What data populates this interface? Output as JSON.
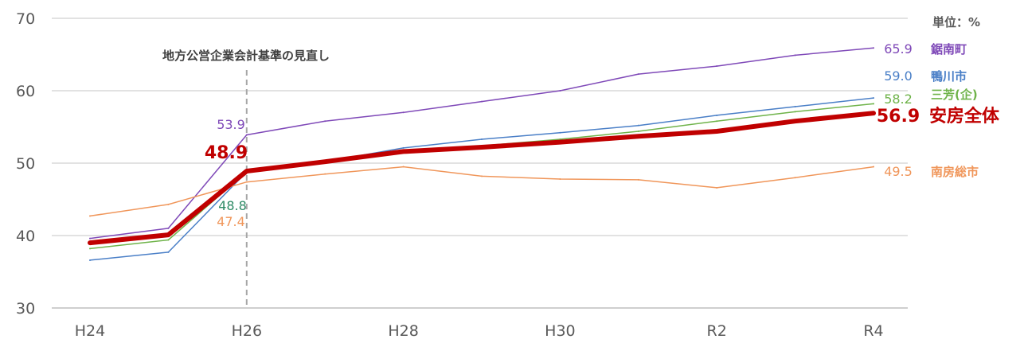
{
  "chart_data": {
    "type": "line",
    "unit_label": "単位：%",
    "annotation": "地方公営企業会計基準の見直し",
    "annotation_x": "H26",
    "x": [
      "H24",
      "H25",
      "H26",
      "H27",
      "H28",
      "H29",
      "H30",
      "H31",
      "R2",
      "R3",
      "R4"
    ],
    "x_tick_labels": [
      "H24",
      "",
      "H26",
      "",
      "H28",
      "",
      "H30",
      "",
      "R2",
      "",
      "R4"
    ],
    "ylim": [
      30,
      70
    ],
    "y_ticks": [
      30,
      40,
      50,
      60,
      70
    ],
    "grid": true,
    "series": [
      {
        "name": "鋸南町",
        "color": "#7F49B8",
        "width": 1.5,
        "values": [
          39.6,
          41.0,
          53.9,
          55.8,
          57.0,
          58.5,
          60.0,
          62.3,
          63.4,
          64.9,
          65.9
        ],
        "end_label": "65.9",
        "h26_label": "53.9"
      },
      {
        "name": "鴨川市",
        "color": "#4A7FC7",
        "width": 1.5,
        "values": [
          36.6,
          37.7,
          48.8,
          50.2,
          52.1,
          53.3,
          54.2,
          55.2,
          56.6,
          57.8,
          59.0
        ],
        "end_label": "59.0",
        "h26_label": "48.8"
      },
      {
        "name": "三芳(企)",
        "color": "#6FB34A",
        "width": 1.5,
        "values": [
          38.2,
          39.4,
          48.8,
          50.0,
          51.6,
          52.4,
          53.3,
          54.4,
          55.8,
          57.1,
          58.2
        ],
        "end_label": "58.2",
        "h26_label": "48.8"
      },
      {
        "name": "南房総市",
        "color": "#F0965A",
        "width": 1.5,
        "values": [
          42.7,
          44.3,
          47.4,
          48.5,
          49.5,
          48.2,
          47.8,
          47.7,
          46.6,
          48.0,
          49.5
        ],
        "end_label": "49.5",
        "h26_label": "47.4"
      },
      {
        "name": "安房全体",
        "color": "#C00000",
        "width": 6,
        "values": [
          39.0,
          40.1,
          48.9,
          50.2,
          51.6,
          52.2,
          52.9,
          53.7,
          54.4,
          55.8,
          56.9
        ],
        "end_label": "56.9",
        "h26_label": "48.9"
      }
    ]
  }
}
